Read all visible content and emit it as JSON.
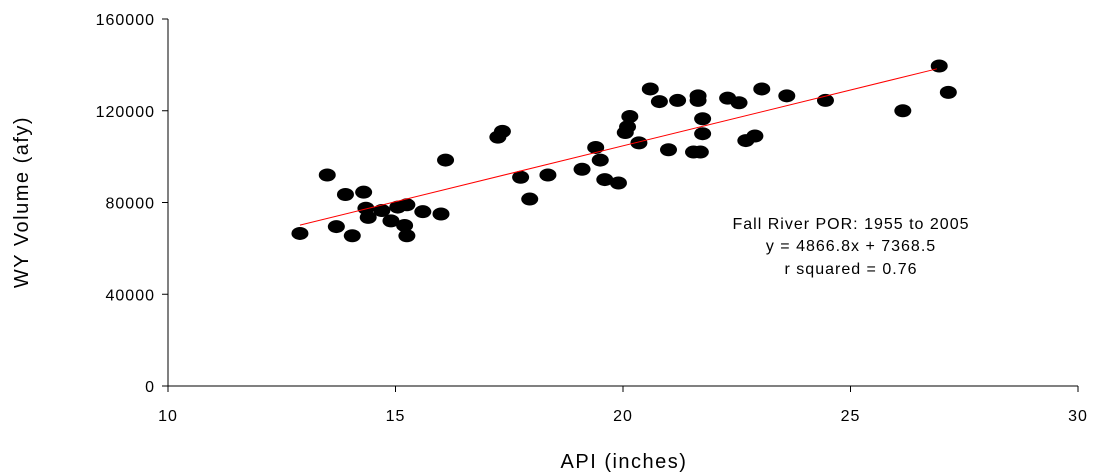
{
  "chart_data": {
    "type": "scatter",
    "xlabel": "API (inches)",
    "ylabel": "WY Volume (afy)",
    "xlim": [
      10,
      30
    ],
    "ylim": [
      0,
      160000
    ],
    "x_ticks": [
      "10",
      "15",
      "20",
      "25",
      "30"
    ],
    "y_ticks": [
      "0",
      "40000",
      "80000",
      "120000",
      "160000"
    ],
    "annotations": [
      "Fall River POR: 1955 to 2005",
      "y = 4866.8x + 7368.5",
      "r squared = 0.76"
    ],
    "trendline": {
      "slope": 4866.8,
      "intercept": 7368.5,
      "x_range": [
        12.9,
        26.9
      ],
      "color": "#ff0000"
    },
    "marker_color": "#000000",
    "points": [
      [
        12.9,
        66500
      ],
      [
        13.5,
        92000
      ],
      [
        13.7,
        69500
      ],
      [
        13.9,
        83500
      ],
      [
        14.05,
        65500
      ],
      [
        14.3,
        84500
      ],
      [
        14.35,
        77500
      ],
      [
        14.4,
        73500
      ],
      [
        14.7,
        76500
      ],
      [
        14.9,
        72000
      ],
      [
        15.05,
        78000
      ],
      [
        15.2,
        70000
      ],
      [
        15.25,
        79000
      ],
      [
        15.25,
        65500
      ],
      [
        15.6,
        76000
      ],
      [
        16.0,
        75000
      ],
      [
        16.1,
        98500
      ],
      [
        17.25,
        108500
      ],
      [
        17.35,
        111000
      ],
      [
        17.75,
        91000
      ],
      [
        17.95,
        81500
      ],
      [
        18.35,
        92000
      ],
      [
        19.1,
        94500
      ],
      [
        19.4,
        104000
      ],
      [
        19.5,
        98500
      ],
      [
        19.6,
        90000
      ],
      [
        19.9,
        88500
      ],
      [
        20.05,
        110500
      ],
      [
        20.1,
        113000
      ],
      [
        20.15,
        117500
      ],
      [
        20.35,
        106000
      ],
      [
        20.6,
        129500
      ],
      [
        20.8,
        124000
      ],
      [
        21.0,
        103000
      ],
      [
        21.2,
        124500
      ],
      [
        21.55,
        102000
      ],
      [
        21.65,
        124500
      ],
      [
        21.65,
        126500
      ],
      [
        21.7,
        102000
      ],
      [
        21.75,
        110000
      ],
      [
        21.75,
        116500
      ],
      [
        22.3,
        125500
      ],
      [
        22.55,
        123500
      ],
      [
        22.7,
        107000
      ],
      [
        22.9,
        109000
      ],
      [
        23.05,
        129500
      ],
      [
        23.6,
        126500
      ],
      [
        24.45,
        124500
      ],
      [
        26.15,
        120000
      ],
      [
        26.95,
        139500
      ],
      [
        27.15,
        128000
      ]
    ]
  }
}
